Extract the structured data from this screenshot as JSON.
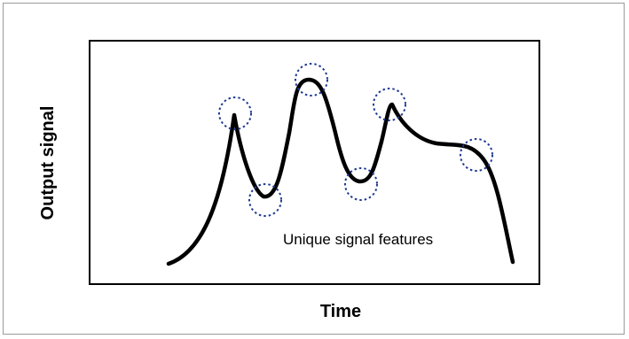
{
  "diagram": {
    "x_axis_label": "Time",
    "y_axis_label": "Output signal",
    "annotation": "Unique signal features",
    "feature_count": 6,
    "colors": {
      "curve": "#000000",
      "feature_marker": "#1f3a93",
      "frame": "#000000",
      "outer_border": "#9a9a9a"
    },
    "feature_marker_style": "dotted-circle"
  }
}
